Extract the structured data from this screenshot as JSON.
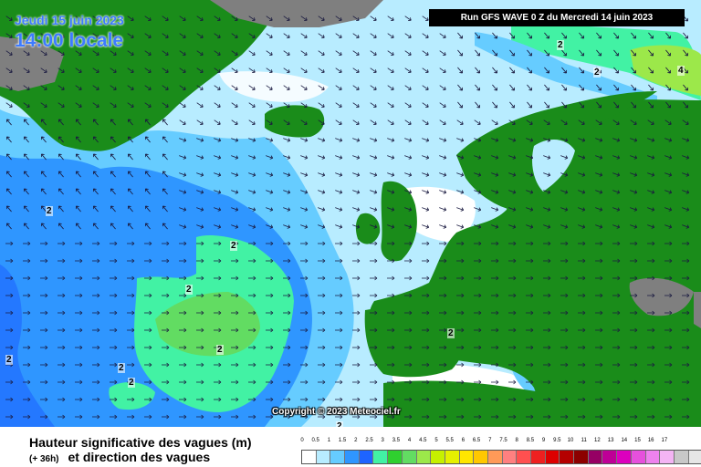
{
  "header": {
    "date": "Jeudi 15 juin 2023",
    "local_time": "14:00 locale",
    "run": "Run GFS WAVE 0 Z du Mercredi 14 juin 2023"
  },
  "map": {
    "copyright": "Copyright © 2023 Meteociel.fr",
    "contour_labels": [
      "2",
      "2",
      "2",
      "2",
      "2",
      "2",
      "2",
      "2",
      "2",
      "2",
      "2",
      "4"
    ],
    "colors": {
      "land": "#1a8c1a",
      "ice": "#7f7f7f",
      "sea_0_0_5": "#ffffff",
      "sea_0_5_1": "#b8ecff",
      "sea_1_1_5": "#66ccff",
      "sea_1_5_2": "#2f96ff",
      "sea_2_2_5": "#42f2a4",
      "sea_2_5_3": "#62dc62",
      "sea_3_3_5": "#9ce84a"
    }
  },
  "legend": {
    "title": "Hauteur significative des vagues (m)",
    "lead_time": "(+ 36h)",
    "subtitle": "et direction des vagues",
    "ticks": [
      "0",
      "0.5",
      "1",
      "1.5",
      "2",
      "2.5",
      "3",
      "3.5",
      "4",
      "4.5",
      "5",
      "5.5",
      "6",
      "6.5",
      "7",
      "7.5",
      "8",
      "8.5",
      "9",
      "9.5",
      "10",
      "11",
      "12",
      "13",
      "14",
      "15",
      "16",
      "17"
    ],
    "colors": [
      "#ffffff",
      "#b8ecff",
      "#66ccff",
      "#2f96ff",
      "#1e64ff",
      "#42f2a4",
      "#2fd02f",
      "#62dc62",
      "#9ce84a",
      "#c6f000",
      "#e6f000",
      "#ffe600",
      "#ffc800",
      "#ff9a58",
      "#ff8080",
      "#ff5050",
      "#ee2020",
      "#dd0000",
      "#b40000",
      "#8c0000",
      "#960064",
      "#be0096",
      "#dc00be",
      "#e650dc",
      "#ee82ee",
      "#f4b4f4",
      "#c8c8c8",
      "#e6e6e6"
    ]
  }
}
